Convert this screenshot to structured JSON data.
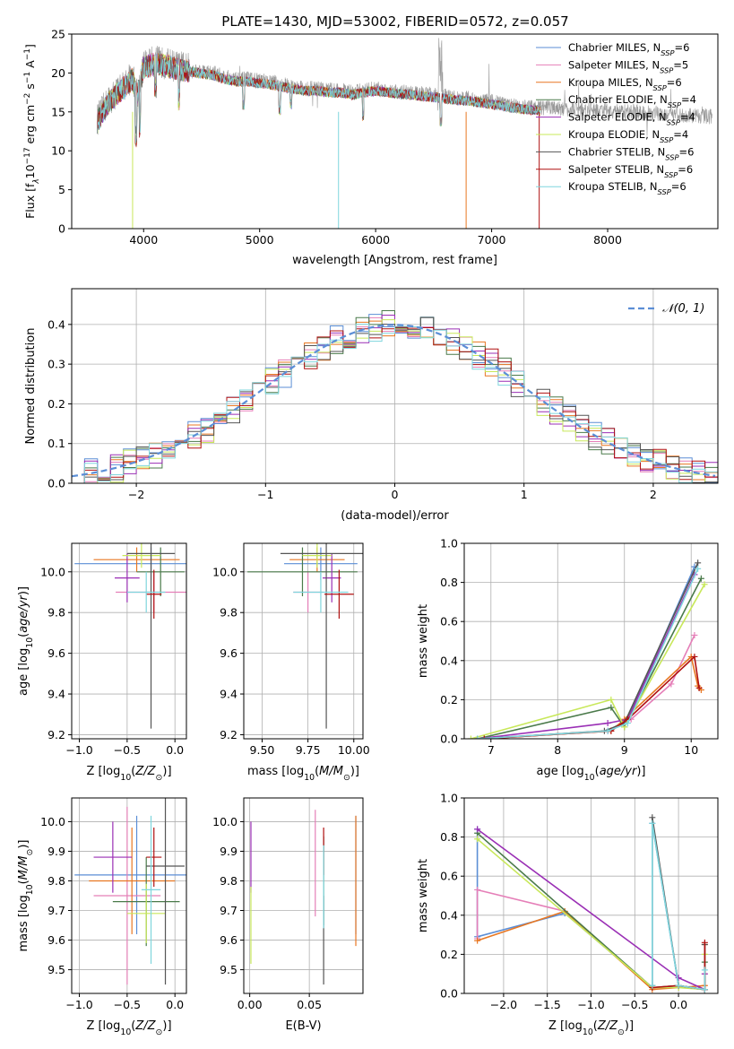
{
  "figure_title": "PLATE=1430, MJD=53002, FIBERID=0572, z=0.057",
  "colors": {
    "series": [
      "#5b8ed6",
      "#e57fb8",
      "#e87722",
      "#4a7a4a",
      "#9a2fb5",
      "#c8e85a",
      "#555555",
      "#b01010",
      "#7fd6dd"
    ],
    "gaussian": "#5b8ed6",
    "grid": "#b0b0b0"
  },
  "series_labels": [
    {
      "model": "Chabrier MILES",
      "n_text": "N",
      "n_sub": "SSP",
      "n_val": "=6"
    },
    {
      "model": "Salpeter MILES",
      "n_text": "N",
      "n_sub": "SSP",
      "n_val": "=5"
    },
    {
      "model": "Kroupa MILES",
      "n_text": "N",
      "n_sub": "SSP",
      "n_val": "=6"
    },
    {
      "model": "Chabrier ELODIE",
      "n_text": "N",
      "n_sub": "SSP",
      "n_val": "=4"
    },
    {
      "model": "Salpeter ELODIE",
      "n_text": "N",
      "n_sub": "SSP",
      "n_val": "=4"
    },
    {
      "model": "Kroupa ELODIE",
      "n_text": "N",
      "n_sub": "SSP",
      "n_val": "=4"
    },
    {
      "model": "Chabrier STELIB",
      "n_text": "N",
      "n_sub": "SSP",
      "n_val": "=6"
    },
    {
      "model": "Salpeter STELIB",
      "n_text": "N",
      "n_sub": "SSP",
      "n_val": "=6"
    },
    {
      "model": "Kroupa STELIB",
      "n_text": "N",
      "n_sub": "SSP",
      "n_val": "=6"
    }
  ],
  "chart_data": [
    {
      "id": "spectrum",
      "type": "line",
      "xlabel": "wavelength [Angstrom, rest frame]",
      "ylabel_parts": [
        "Flux [f",
        "λ",
        "10",
        "−17",
        " erg cm",
        "−2",
        " s",
        "−1",
        " A",
        "−1",
        "]"
      ],
      "xlim": [
        3380,
        8950
      ],
      "ylim": [
        0,
        25
      ],
      "xticks": [
        4000,
        5000,
        6000,
        7000,
        8000
      ],
      "yticks": [
        0,
        5,
        10,
        15,
        20,
        25
      ],
      "legend_placement": "upper-right",
      "anchors": {
        "x": [
          3600,
          3700,
          3800,
          3900,
          3950,
          4000,
          4100,
          4200,
          4300,
          4400,
          4500,
          4600,
          4700,
          4800,
          4900,
          5000,
          5100,
          5200,
          5300,
          5400,
          5500,
          5600,
          5700,
          5800,
          5900,
          6000,
          6100,
          6200,
          6300,
          6400,
          6500,
          6600,
          6700,
          6800,
          6900,
          7000,
          7100,
          7200,
          7300,
          7400,
          7500,
          7600,
          7700,
          7800,
          7900,
          8000,
          8100,
          8200,
          8300,
          8400,
          8500,
          8600,
          8700,
          8800,
          8900
        ],
        "y": [
          14.0,
          16.5,
          18.0,
          19.5,
          17.5,
          21.0,
          21.5,
          21.2,
          20.8,
          20.5,
          20.2,
          20.0,
          19.5,
          19.2,
          19.2,
          19.0,
          18.8,
          18.5,
          18.2,
          18.0,
          18.0,
          17.8,
          17.8,
          17.5,
          17.8,
          18.0,
          17.8,
          17.6,
          17.5,
          17.3,
          17.2,
          17.0,
          16.8,
          16.7,
          16.5,
          16.3,
          16.0,
          15.8,
          15.6,
          15.5,
          15.6,
          15.4,
          15.3,
          15.3,
          15.2,
          15.1,
          15.0,
          15.0,
          14.9,
          14.8,
          14.8,
          14.6,
          14.5,
          14.5,
          14.4
        ]
      },
      "model_end_x": 7420
    },
    {
      "id": "residuals",
      "type": "line",
      "xlabel": "(data-model)/error",
      "ylabel": "Normed distribution",
      "xlim": [
        -2.5,
        2.5
      ],
      "ylim": [
        0,
        0.49
      ],
      "xticks": [
        -2,
        -1,
        0,
        1,
        2
      ],
      "yticks": [
        0.0,
        0.1,
        0.2,
        0.3,
        0.4
      ],
      "grid": true,
      "legend_placement": "upper-right",
      "legend_label": "𝒩(0, 1)",
      "gaussian": {
        "mean": 0,
        "sigma": 1
      }
    },
    {
      "id": "age-vs-z",
      "type": "scatter",
      "xlabel_main": "Z [log",
      "xlabel_sub": "10",
      "xlabel_tail": "(Z/Z",
      "xlabel_sun": "⊙",
      "xlabel_end": ")]",
      "ylabel_main": "age  [log",
      "ylabel_sub": "10",
      "ylabel_tail": "(age/yr)]",
      "xlim": [
        -1.08,
        0.12
      ],
      "ylim": [
        9.18,
        10.14
      ],
      "xticks": [
        -1.0,
        -0.5,
        0.0
      ],
      "yticks": [
        9.2,
        9.4,
        9.6,
        9.8,
        10.0
      ],
      "grid": true,
      "points": [
        {
          "x": -0.25,
          "y": 10.04,
          "xerr": 0.8,
          "yerr": 0.08
        },
        {
          "x": -0.22,
          "y": 9.9,
          "xerr": 0.4,
          "yerr": 0.1
        },
        {
          "x": -0.4,
          "y": 10.06,
          "xerr": 0.45,
          "yerr": 0.06
        },
        {
          "x": -0.15,
          "y": 10.0,
          "xerr": 0.25,
          "yerr": 0.12
        },
        {
          "x": -0.5,
          "y": 9.97,
          "xerr": 0.13,
          "yerr": 0.12
        },
        {
          "x": -0.35,
          "y": 10.08,
          "xerr": 0.2,
          "yerr": 0.06
        },
        {
          "x": -0.25,
          "y": 10.09,
          "xerr": 0.25,
          "yerr": 0.86
        },
        {
          "x": -0.22,
          "y": 9.89,
          "xerr": 0.08,
          "yerr": 0.12
        },
        {
          "x": -0.3,
          "y": 9.9,
          "xerr": 0.2,
          "yerr": 0.1
        }
      ]
    },
    {
      "id": "age-vs-mass",
      "type": "scatter",
      "xlabel_main": "mass [log",
      "xlabel_sub": "10",
      "xlabel_tail": "(M/M",
      "xlabel_sun": "⊙",
      "xlabel_end": ")]",
      "xlim": [
        9.4,
        10.05
      ],
      "ylim": [
        9.18,
        10.14
      ],
      "xticks": [
        9.5,
        9.75,
        10.0
      ],
      "yticks": [
        9.2,
        9.4,
        9.6,
        9.8,
        10.0
      ],
      "grid": true,
      "points": [
        {
          "x": 9.82,
          "y": 10.04,
          "xerr": 0.2,
          "yerr": 0.08
        },
        {
          "x": 9.75,
          "y": 9.9,
          "xerr": 0.08,
          "yerr": 0.1
        },
        {
          "x": 9.8,
          "y": 10.06,
          "xerr": 0.15,
          "yerr": 0.06
        },
        {
          "x": 9.72,
          "y": 10.0,
          "xerr": 0.3,
          "yerr": 0.12
        },
        {
          "x": 9.88,
          "y": 9.97,
          "xerr": 0.05,
          "yerr": 0.12
        },
        {
          "x": 9.8,
          "y": 10.08,
          "xerr": 0.08,
          "yerr": 0.06
        },
        {
          "x": 9.85,
          "y": 10.09,
          "xerr": 0.25,
          "yerr": 0.86
        },
        {
          "x": 9.92,
          "y": 9.89,
          "xerr": 0.08,
          "yerr": 0.12
        },
        {
          "x": 9.82,
          "y": 9.9,
          "xerr": 0.15,
          "yerr": 0.1
        }
      ]
    },
    {
      "id": "weight-vs-age",
      "type": "line",
      "xlabel_main": "age  [log",
      "xlabel_sub": "10",
      "xlabel_tail": "(age/yr)]",
      "ylabel": "mass weight",
      "xlim": [
        6.6,
        10.4
      ],
      "ylim": [
        0,
        1.0
      ],
      "xticks": [
        7,
        8,
        9,
        10
      ],
      "yticks": [
        0.0,
        0.2,
        0.4,
        0.6,
        0.8,
        1.0
      ],
      "grid": true,
      "series": [
        {
          "x": [
            6.8,
            8.75,
            9.05,
            10.05
          ],
          "y": [
            0.0,
            0.04,
            0.1,
            0.88
          ]
        },
        {
          "x": [
            6.9,
            8.75,
            9.1,
            9.7,
            10.05
          ],
          "y": [
            0.0,
            0.04,
            0.1,
            0.28,
            0.53
          ]
        },
        {
          "x": [
            6.9,
            8.8,
            9.0,
            10.0,
            10.1,
            10.15
          ],
          "y": [
            0.0,
            0.04,
            0.1,
            0.42,
            0.27,
            0.25
          ]
        },
        {
          "x": [
            6.8,
            8.8,
            9.0,
            10.15
          ],
          "y": [
            0.0,
            0.16,
            0.06,
            0.82
          ]
        },
        {
          "x": [
            6.8,
            8.75,
            9.05,
            10.05
          ],
          "y": [
            0.0,
            0.08,
            0.1,
            0.84
          ]
        },
        {
          "x": [
            6.7,
            8.8,
            9.0,
            10.2
          ],
          "y": [
            0.0,
            0.2,
            0.06,
            0.79
          ]
        },
        {
          "x": [
            6.8,
            8.7,
            9.0,
            10.1
          ],
          "y": [
            0.0,
            0.04,
            0.08,
            0.9
          ]
        },
        {
          "x": [
            6.9,
            8.8,
            9.05,
            10.05,
            10.12
          ],
          "y": [
            0.0,
            0.04,
            0.1,
            0.42,
            0.26
          ]
        },
        {
          "x": [
            6.8,
            8.75,
            9.05,
            10.1
          ],
          "y": [
            0.0,
            0.04,
            0.08,
            0.87
          ]
        }
      ]
    },
    {
      "id": "mass-vs-z",
      "type": "scatter",
      "xlabel_main": "Z [log",
      "xlabel_sub": "10",
      "xlabel_tail": "(Z/Z",
      "xlabel_sun": "⊙",
      "xlabel_end": ")]",
      "ylabel_main": "mass [log",
      "ylabel_sub": "10",
      "ylabel_tail": "(M/M",
      "ylabel_sun": "⊙",
      "ylabel_end": ")]",
      "xlim": [
        -1.08,
        0.12
      ],
      "ylim": [
        9.42,
        10.08
      ],
      "xticks": [
        -1.0,
        -0.5,
        0.0
      ],
      "yticks": [
        9.5,
        9.6,
        9.7,
        9.8,
        9.9,
        10.0
      ],
      "grid": true,
      "points": [
        {
          "x": -0.4,
          "y": 9.82,
          "xerr": 0.65,
          "yerr": 0.2
        },
        {
          "x": -0.5,
          "y": 9.75,
          "xerr": 0.35,
          "yerr": 0.3
        },
        {
          "x": -0.45,
          "y": 9.8,
          "xerr": 0.45,
          "yerr": 0.18
        },
        {
          "x": -0.3,
          "y": 9.73,
          "xerr": 0.35,
          "yerr": 0.15
        },
        {
          "x": -0.65,
          "y": 9.88,
          "xerr": 0.2,
          "yerr": 0.12
        },
        {
          "x": -0.3,
          "y": 9.69,
          "xerr": 0.2,
          "yerr": 0.1
        },
        {
          "x": -0.1,
          "y": 9.85,
          "xerr": 0.2,
          "yerr": 0.4
        },
        {
          "x": -0.22,
          "y": 9.88,
          "xerr": 0.08,
          "yerr": 0.1
        },
        {
          "x": -0.25,
          "y": 9.77,
          "xerr": 0.1,
          "yerr": 0.25
        }
      ]
    },
    {
      "id": "mass-vs-ebv",
      "type": "scatter",
      "xlabel": "E(B-V)",
      "xlim": [
        -0.005,
        0.095
      ],
      "ylim": [
        9.42,
        10.08
      ],
      "xticks": [
        0.0,
        0.05
      ],
      "yticks": [
        9.5,
        9.6,
        9.7,
        9.8,
        9.9,
        10.0
      ],
      "grid": true,
      "points": [
        {
          "x": 0.089,
          "y": 9.82,
          "yerr": 0.2
        },
        {
          "x": 0.055,
          "y": 9.86,
          "yerr": 0.18
        },
        {
          "x": 0.089,
          "y": 9.8,
          "yerr": 0.22
        },
        {
          "x": 0.062,
          "y": 9.8,
          "yerr": 0.15
        },
        {
          "x": 0.001,
          "y": 9.88,
          "yerr": 0.12
        },
        {
          "x": 0.001,
          "y": 9.65,
          "yerr": 0.13
        },
        {
          "x": 0.062,
          "y": 9.6,
          "yerr": 0.15
        },
        {
          "x": 0.062,
          "y": 9.9,
          "yerr": 0.08
        },
        {
          "x": 0.062,
          "y": 9.78,
          "yerr": 0.14
        }
      ]
    },
    {
      "id": "weight-vs-z",
      "type": "line",
      "xlabel_main": "Z [log",
      "xlabel_sub": "10",
      "xlabel_tail": "(Z/Z",
      "xlabel_sun": "⊙",
      "xlabel_end": ")]",
      "ylabel": "mass weight",
      "xlim": [
        -2.45,
        0.45
      ],
      "ylim": [
        0,
        1.0
      ],
      "xticks": [
        -2.0,
        -1.5,
        -1.0,
        -0.5,
        0.0
      ],
      "yticks": [
        0.0,
        0.2,
        0.4,
        0.6,
        0.8,
        1.0
      ],
      "grid": true,
      "series": [
        {
          "x": [
            -2.3,
            -2.3,
            -1.3,
            -0.3,
            -0.3,
            0.0,
            0.3
          ],
          "y": [
            0.84,
            0.29,
            0.41,
            0.03,
            0.87,
            0.04,
            0.02
          ]
        },
        {
          "x": [
            -2.3,
            -2.3,
            -1.3,
            -0.3,
            0.0,
            0.3,
            0.3
          ],
          "y": [
            0.28,
            0.53,
            0.42,
            0.03,
            0.04,
            0.02,
            0.1
          ]
        },
        {
          "x": [
            -2.3,
            -1.3,
            -0.3,
            0.0,
            0.3,
            0.3
          ],
          "y": [
            0.27,
            0.42,
            0.02,
            0.03,
            0.04,
            0.25
          ]
        },
        {
          "x": [
            -2.3,
            -0.3,
            0.0,
            0.3,
            0.3
          ],
          "y": [
            0.82,
            0.03,
            0.04,
            0.02,
            0.16
          ]
        },
        {
          "x": [
            -2.3,
            0.0,
            0.3,
            0.3
          ],
          "y": [
            0.84,
            0.08,
            0.02,
            0.1
          ]
        },
        {
          "x": [
            -2.3,
            -0.3,
            0.0,
            0.3,
            0.3
          ],
          "y": [
            0.79,
            0.03,
            0.03,
            0.02,
            0.2
          ]
        },
        {
          "x": [
            -0.3,
            -0.3,
            0.0,
            0.3,
            0.3
          ],
          "y": [
            0.04,
            0.9,
            0.04,
            0.02,
            0.25
          ]
        },
        {
          "x": [
            -0.3,
            0.0,
            0.3,
            0.3
          ],
          "y": [
            0.03,
            0.04,
            0.02,
            0.26
          ]
        },
        {
          "x": [
            -0.3,
            -0.3,
            0.0,
            0.3,
            0.3
          ],
          "y": [
            0.04,
            0.87,
            0.04,
            0.02,
            0.12
          ]
        }
      ]
    }
  ]
}
